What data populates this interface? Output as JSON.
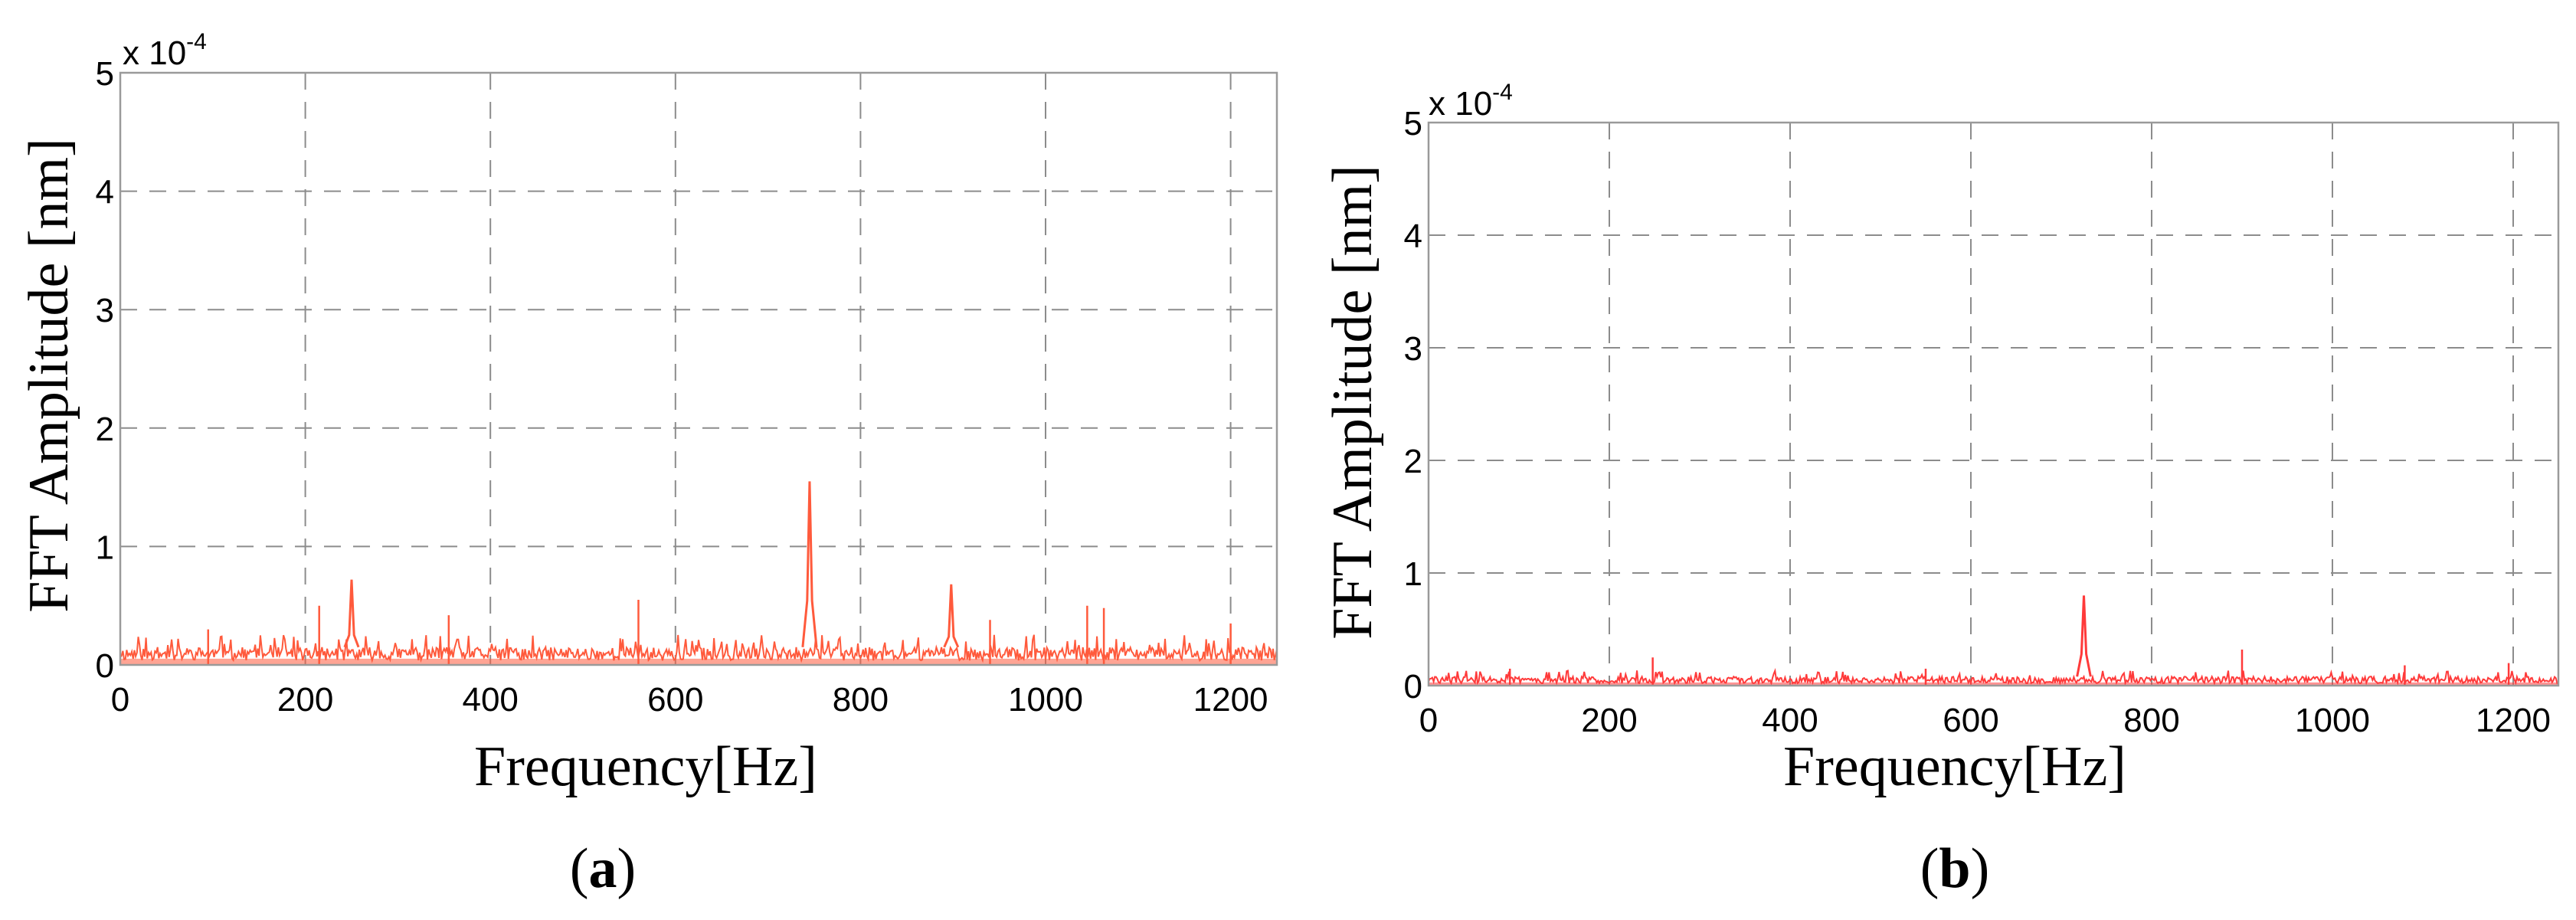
{
  "chart_data": [
    {
      "type": "line",
      "panel_label_prefix": "(",
      "panel_label": "a",
      "panel_label_suffix": ")",
      "xlabel": "Frequency[Hz]",
      "ylabel": "FFT Amplitude [nm]",
      "y_multiplier": "x 10",
      "y_exponent": "-4",
      "xlim": [
        0,
        1250
      ],
      "ylim": [
        0,
        5
      ],
      "x_ticks": [
        0,
        200,
        400,
        600,
        800,
        1000,
        1200
      ],
      "y_ticks": [
        0,
        1,
        2,
        3,
        4,
        5
      ],
      "grid": true,
      "line_color": "#ff5a3c",
      "series": [
        {
          "noise_floor": 0.15,
          "peaks": [
            {
              "x": 95,
              "y": 0.3
            },
            {
              "x": 215,
              "y": 0.5
            },
            {
              "x": 250,
              "y": 0.72
            },
            {
              "x": 355,
              "y": 0.42
            },
            {
              "x": 560,
              "y": 0.55
            },
            {
              "x": 745,
              "y": 1.55
            },
            {
              "x": 898,
              "y": 0.68
            },
            {
              "x": 940,
              "y": 0.38
            },
            {
              "x": 1045,
              "y": 0.5
            },
            {
              "x": 1063,
              "y": 0.48
            },
            {
              "x": 1200,
              "y": 0.35
            }
          ]
        }
      ]
    },
    {
      "type": "line",
      "panel_label_prefix": "(",
      "panel_label": "b",
      "panel_label_suffix": ")",
      "xlabel": "Frequency[Hz]",
      "ylabel": "FFT Amplitude [nm]",
      "y_multiplier": "x 10",
      "y_exponent": "-4",
      "xlim": [
        0,
        1250
      ],
      "ylim": [
        0,
        5
      ],
      "x_ticks": [
        0,
        200,
        400,
        600,
        800,
        1000,
        1200
      ],
      "y_ticks": [
        0,
        1,
        2,
        3,
        4,
        5
      ],
      "grid": true,
      "line_color": "#ff3a3a",
      "series": [
        {
          "noise_floor": 0.08,
          "peaks": [
            {
              "x": 90,
              "y": 0.15
            },
            {
              "x": 248,
              "y": 0.25
            },
            {
              "x": 550,
              "y": 0.15
            },
            {
              "x": 725,
              "y": 0.8
            },
            {
              "x": 900,
              "y": 0.32
            },
            {
              "x": 1080,
              "y": 0.18
            },
            {
              "x": 1195,
              "y": 0.2
            }
          ]
        }
      ]
    }
  ]
}
